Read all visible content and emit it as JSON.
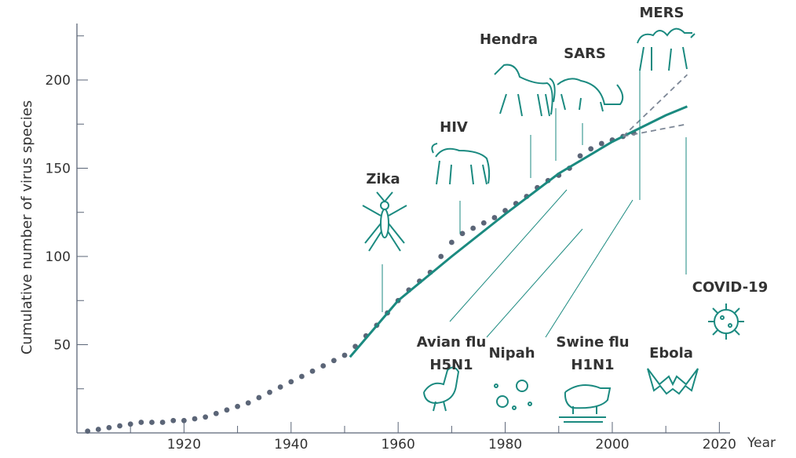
{
  "chart_data": {
    "type": "scatter",
    "x_label": "Year",
    "y_label": "Cumulative number of virus species",
    "xlim": [
      1900,
      2022
    ],
    "ylim": [
      0,
      232
    ],
    "xticks": [
      1920,
      1940,
      1960,
      1980,
      2000,
      2020
    ],
    "xminor": [
      1910,
      1930,
      1950,
      1970,
      1990,
      2010
    ],
    "yticks": [
      50,
      100,
      150,
      200
    ],
    "yminor": [
      25,
      75,
      125,
      175,
      225
    ],
    "series": [
      {
        "style": "dots",
        "color": "#5b6577",
        "x": [
          1902,
          1904,
          1906,
          1908,
          1910,
          1912,
          1914,
          1916,
          1918,
          1920,
          1922,
          1924,
          1926,
          1928,
          1930,
          1932,
          1934,
          1936,
          1938,
          1940,
          1942,
          1944,
          1946,
          1948,
          1950,
          1952,
          1954,
          1956,
          1958,
          1960,
          1962,
          1964,
          1966,
          1968,
          1970,
          1972,
          1974,
          1976,
          1978,
          1980,
          1982,
          1984,
          1986,
          1988,
          1990,
          1992,
          1994,
          1996,
          1998,
          2000,
          2002,
          2004
        ],
        "values": [
          1,
          2,
          3,
          4,
          5,
          6,
          6,
          6,
          7,
          7,
          8,
          9,
          11,
          13,
          15,
          17,
          20,
          23,
          26,
          29,
          32,
          35,
          38,
          41,
          44,
          49,
          55,
          61,
          68,
          75,
          81,
          86,
          91,
          100,
          108,
          113,
          116,
          119,
          122,
          126,
          130,
          134,
          139,
          143,
          146,
          150,
          157,
          161,
          164,
          166,
          168,
          170
        ]
      },
      {
        "style": "line",
        "color": "#1b8a80",
        "x": [
          1951,
          1960,
          1970,
          1980,
          1990,
          2000,
          2010,
          2014
        ],
        "values": [
          43,
          75,
          100,
          124,
          147,
          165,
          180,
          185
        ]
      },
      {
        "style": "dashed",
        "color": "#7d8796",
        "x": [
          2002,
          2014
        ],
        "values": [
          168,
          203
        ]
      },
      {
        "style": "dashed",
        "color": "#7d8796",
        "x": [
          2002,
          2014
        ],
        "values": [
          168,
          175
        ]
      }
    ],
    "annotations": [
      {
        "text": [
          "Zika"
        ]
      },
      {
        "text": [
          "HIV"
        ]
      },
      {
        "text": [
          "Hendra"
        ]
      },
      {
        "text": [
          "SARS"
        ]
      },
      {
        "text": [
          "MERS"
        ]
      },
      {
        "text": [
          "COVID-19"
        ]
      },
      {
        "text": [
          "Avian flu",
          "H5N1"
        ]
      },
      {
        "text": [
          "Nipah"
        ]
      },
      {
        "text": [
          "Swine flu",
          "H1N1"
        ]
      },
      {
        "text": [
          "Ebola"
        ]
      }
    ]
  }
}
